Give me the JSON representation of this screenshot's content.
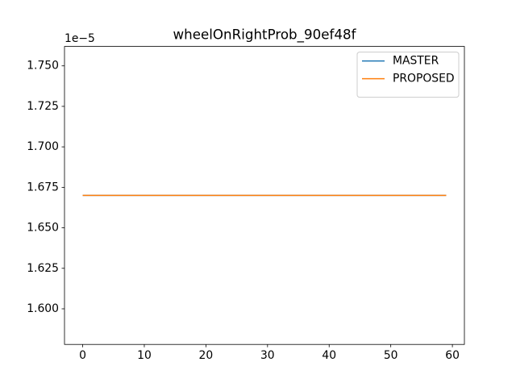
{
  "chart_data": {
    "type": "line",
    "title": "wheelOnRightProb_90ef48f",
    "y_offset_text": "1e−5",
    "x": [
      0,
      1,
      2,
      3,
      4,
      5,
      6,
      7,
      8,
      9,
      10,
      11,
      12,
      13,
      14,
      15,
      16,
      17,
      18,
      19,
      20,
      21,
      22,
      23,
      24,
      25,
      26,
      27,
      28,
      29,
      30,
      31,
      32,
      33,
      34,
      35,
      36,
      37,
      38,
      39,
      40,
      41,
      42,
      43,
      44,
      45,
      46,
      47,
      48,
      49,
      50,
      51,
      52,
      53,
      54,
      55,
      56,
      57,
      58,
      59
    ],
    "series": [
      {
        "name": "MASTER",
        "color": "#1f77b4",
        "values": [
          1.67,
          1.67,
          1.67,
          1.67,
          1.67,
          1.67,
          1.67,
          1.67,
          1.67,
          1.67,
          1.67,
          1.67,
          1.67,
          1.67,
          1.67,
          1.67,
          1.67,
          1.67,
          1.67,
          1.67,
          1.67,
          1.67,
          1.67,
          1.67,
          1.67,
          1.67,
          1.67,
          1.67,
          1.67,
          1.67,
          1.67,
          1.67,
          1.67,
          1.67,
          1.67,
          1.67,
          1.67,
          1.67,
          1.67,
          1.67,
          1.67,
          1.67,
          1.67,
          1.67,
          1.67,
          1.67,
          1.67,
          1.67,
          1.67,
          1.67,
          1.67,
          1.67,
          1.67,
          1.67,
          1.67,
          1.67,
          1.67,
          1.67,
          1.67,
          1.67
        ]
      },
      {
        "name": "PROPOSED",
        "color": "#ff7f0e",
        "values": [
          1.67,
          1.67,
          1.67,
          1.67,
          1.67,
          1.67,
          1.67,
          1.67,
          1.67,
          1.67,
          1.67,
          1.67,
          1.67,
          1.67,
          1.67,
          1.67,
          1.67,
          1.67,
          1.67,
          1.67,
          1.67,
          1.67,
          1.67,
          1.67,
          1.67,
          1.67,
          1.67,
          1.67,
          1.67,
          1.67,
          1.67,
          1.67,
          1.67,
          1.67,
          1.67,
          1.67,
          1.67,
          1.67,
          1.67,
          1.67,
          1.67,
          1.67,
          1.67,
          1.67,
          1.67,
          1.67,
          1.67,
          1.67,
          1.67,
          1.67,
          1.67,
          1.67,
          1.67,
          1.67,
          1.67,
          1.67,
          1.67,
          1.67,
          1.67,
          1.67
        ]
      }
    ],
    "xlim": [
      -2.95,
      61.95
    ],
    "xticks": [
      0,
      10,
      20,
      30,
      40,
      50,
      60
    ],
    "ylim": [
      1.578,
      1.762
    ],
    "yticks": [
      {
        "value": 1.6,
        "label": "1.600"
      },
      {
        "value": 1.625,
        "label": "1.625"
      },
      {
        "value": 1.65,
        "label": "1.650"
      },
      {
        "value": 1.675,
        "label": "1.675"
      },
      {
        "value": 1.7,
        "label": "1.700"
      },
      {
        "value": 1.725,
        "label": "1.725"
      },
      {
        "value": 1.75,
        "label": "1.750"
      }
    ],
    "legend": "upper right",
    "grid": false
  }
}
